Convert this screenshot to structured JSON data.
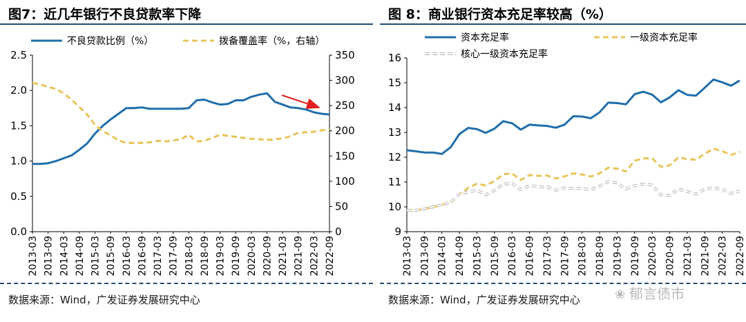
{
  "panel1": {
    "title": "图7：近几年银行不良贷款率下降",
    "source": "数据来源：Wind，广发证券发展研究中心"
  },
  "panel2": {
    "title": "图 8：商业银行资本充足率较高（%）",
    "source": "数据来源：Wind，广发证券发展研究中心"
  },
  "watermark": "郁言债市",
  "chart_data": [
    {
      "type": "line",
      "title": "图7：近几年银行不良贷款率下降",
      "categories": [
        "2013-03",
        "2013-06",
        "2013-09",
        "2013-12",
        "2014-03",
        "2014-06",
        "2014-09",
        "2014-12",
        "2015-03",
        "2015-06",
        "2015-09",
        "2015-12",
        "2016-03",
        "2016-06",
        "2016-09",
        "2016-12",
        "2017-03",
        "2017-06",
        "2017-09",
        "2017-12",
        "2018-03",
        "2018-06",
        "2018-09",
        "2018-12",
        "2019-03",
        "2019-06",
        "2019-09",
        "2019-12",
        "2020-03",
        "2020-06",
        "2020-09",
        "2020-12",
        "2021-03",
        "2021-06",
        "2021-09",
        "2021-12",
        "2022-03",
        "2022-06",
        "2022-09"
      ],
      "tick_labels": [
        "2013-03",
        "2013-09",
        "2014-03",
        "2014-09",
        "2015-03",
        "2015-09",
        "2016-03",
        "2016-09",
        "2017-03",
        "2017-09",
        "2018-03",
        "2018-09",
        "2019-03",
        "2019-09",
        "2020-03",
        "2020-09",
        "2021-03",
        "2021-09",
        "2022-03",
        "2022-09"
      ],
      "ylim_left": [
        0,
        2.5
      ],
      "yticks_left": [
        "0.0",
        "0.5",
        "1.0",
        "1.5",
        "2.0",
        "2.5"
      ],
      "ylim_right": [
        0,
        350
      ],
      "yticks_right": [
        "0",
        "50",
        "100",
        "150",
        "200",
        "250",
        "300",
        "350"
      ],
      "series": [
        {
          "name": "不良贷款比例（%）",
          "axis": "left",
          "color": "#1f6eab",
          "style": "solid",
          "values": [
            0.96,
            0.96,
            0.97,
            1.0,
            1.04,
            1.08,
            1.16,
            1.25,
            1.39,
            1.5,
            1.59,
            1.67,
            1.75,
            1.75,
            1.76,
            1.74,
            1.74,
            1.74,
            1.74,
            1.74,
            1.75,
            1.86,
            1.87,
            1.83,
            1.8,
            1.81,
            1.86,
            1.86,
            1.91,
            1.94,
            1.96,
            1.84,
            1.8,
            1.76,
            1.75,
            1.73,
            1.69,
            1.67,
            1.66
          ]
        },
        {
          "name": "拨备覆盖率（%，右轴）",
          "axis": "right",
          "color": "#e8c45a",
          "style": "dashed",
          "values": [
            295,
            292,
            287,
            283,
            274,
            262,
            247,
            232,
            212,
            199,
            191,
            181,
            176,
            176,
            176,
            177,
            180,
            179,
            181,
            183,
            192,
            179,
            180,
            186,
            192,
            190,
            188,
            186,
            184,
            183,
            182,
            183,
            185,
            189,
            196,
            197,
            198,
            201,
            203
          ]
        }
      ]
    },
    {
      "type": "line",
      "title": "图 8：商业银行资本充足率较高（%）",
      "categories": [
        "2013-03",
        "2013-06",
        "2013-09",
        "2013-12",
        "2014-03",
        "2014-06",
        "2014-09",
        "2014-12",
        "2015-03",
        "2015-06",
        "2015-09",
        "2015-12",
        "2016-03",
        "2016-06",
        "2016-09",
        "2016-12",
        "2017-03",
        "2017-06",
        "2017-09",
        "2017-12",
        "2018-03",
        "2018-06",
        "2018-09",
        "2018-12",
        "2019-03",
        "2019-06",
        "2019-09",
        "2019-12",
        "2020-03",
        "2020-06",
        "2020-09",
        "2020-12",
        "2021-03",
        "2021-06",
        "2021-09",
        "2021-12",
        "2022-03",
        "2022-06",
        "2022-09"
      ],
      "tick_labels": [
        "2013-03",
        "2013-09",
        "2014-03",
        "2014-09",
        "2015-03",
        "2015-09",
        "2016-03",
        "2016-09",
        "2017-03",
        "2017-09",
        "2018-03",
        "2018-09",
        "2019-03",
        "2019-09",
        "2020-03",
        "2020-09",
        "2021-03",
        "2021-09",
        "2022-03",
        "2022-09"
      ],
      "ylim": [
        9,
        16
      ],
      "yticks": [
        "9",
        "10",
        "11",
        "12",
        "13",
        "14",
        "15",
        "16"
      ],
      "series": [
        {
          "name": "资本充足率",
          "color": "#1f6eab",
          "style": "solid",
          "values": [
            12.28,
            12.24,
            12.19,
            12.19,
            12.13,
            12.4,
            12.93,
            13.18,
            13.13,
            12.98,
            13.15,
            13.45,
            13.37,
            13.11,
            13.31,
            13.28,
            13.26,
            13.19,
            13.31,
            13.65,
            13.64,
            13.57,
            13.81,
            14.2,
            14.18,
            14.13,
            14.54,
            14.64,
            14.52,
            14.21,
            14.41,
            14.7,
            14.51,
            14.48,
            14.8,
            15.13,
            15.02,
            14.88,
            15.09
          ]
        },
        {
          "name": "一级资本充足率",
          "color": "#e8c45a",
          "style": "dashed",
          "values": [
            9.86,
            9.86,
            9.91,
            10.0,
            10.08,
            10.18,
            10.51,
            10.76,
            10.93,
            10.86,
            11.04,
            11.31,
            11.35,
            11.08,
            11.28,
            11.25,
            11.26,
            11.14,
            11.23,
            11.35,
            11.3,
            11.22,
            11.35,
            11.58,
            11.54,
            11.43,
            11.86,
            11.95,
            11.95,
            11.61,
            11.67,
            12.0,
            11.92,
            11.9,
            12.14,
            12.35,
            12.24,
            12.09,
            12.22
          ]
        },
        {
          "name": "核心一级资本充足率",
          "color": "#b3b3b3",
          "style": "dashed-outline",
          "values": [
            9.86,
            9.86,
            9.91,
            10.0,
            10.08,
            10.18,
            10.51,
            10.6,
            10.67,
            10.48,
            10.66,
            10.91,
            10.95,
            10.7,
            10.86,
            10.8,
            10.81,
            10.67,
            10.76,
            10.75,
            10.74,
            10.69,
            10.84,
            11.02,
            10.96,
            10.72,
            10.85,
            10.92,
            10.88,
            10.48,
            10.46,
            10.72,
            10.62,
            10.51,
            10.71,
            10.78,
            10.7,
            10.54,
            10.64
          ]
        }
      ]
    }
  ]
}
